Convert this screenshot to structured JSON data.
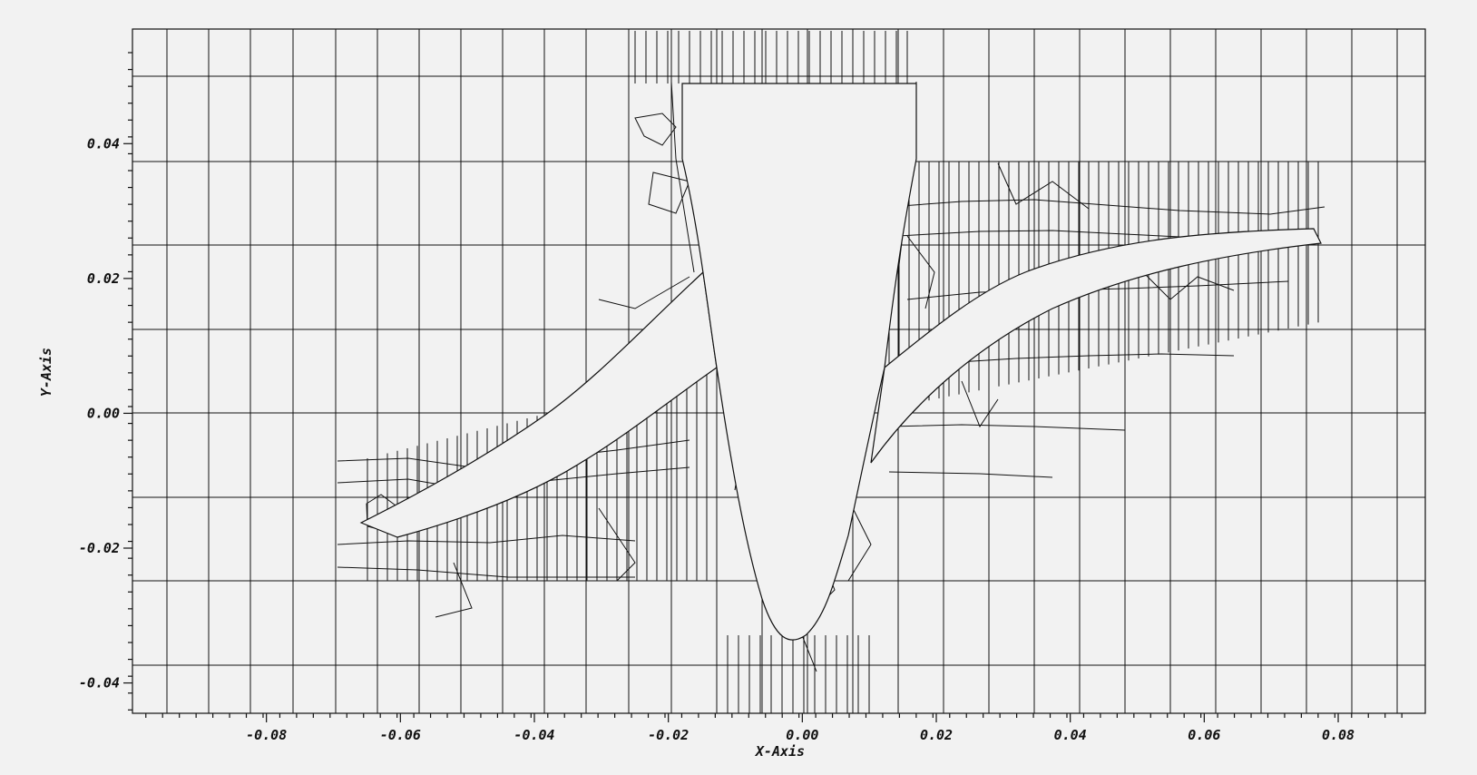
{
  "plot": {
    "xlabel": "X-Axis",
    "ylabel": "Y-Axis",
    "xlim": [
      -0.1,
      0.093
    ],
    "ylim": [
      -0.0445,
      0.057
    ],
    "x_ticks": [
      -0.08,
      -0.06,
      -0.04,
      -0.02,
      0.0,
      0.02,
      0.04,
      0.06,
      0.08
    ],
    "y_ticks": [
      -0.04,
      -0.02,
      0.0,
      0.02,
      0.04
    ],
    "x_tick_labels": [
      "-0.08",
      "-0.06",
      "-0.04",
      "-0.02",
      "0.00",
      "0.02",
      "0.04",
      "0.06",
      "0.08"
    ],
    "y_tick_labels": [
      "-0.04",
      "-0.02",
      "0.00",
      "0.02",
      "0.04"
    ],
    "colors": {
      "background": "#f2f2f2",
      "lines": "#111111"
    }
  }
}
